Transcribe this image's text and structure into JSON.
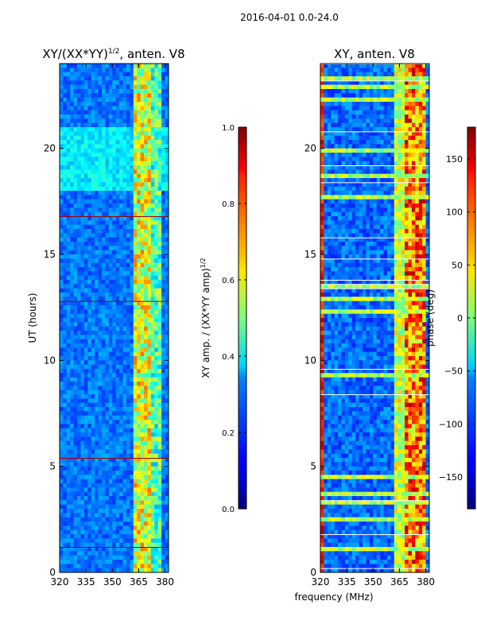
{
  "figure": {
    "suptitle": "2016-04-01 0.0-24.0",
    "shared_ylabel": "UT (hours)",
    "shared_xlabel": "frequency (MHz)"
  },
  "chart_data": [
    {
      "type": "heatmap",
      "title_main": "XY/(XX*YY)",
      "title_sup": "1/2",
      "title_tail": ", anten. V8",
      "xlabel": "frequency (MHz)",
      "ylabel": "UT (hours)",
      "xlim": [
        320,
        382
      ],
      "ylim": [
        0,
        24
      ],
      "xticks": [
        320,
        335,
        350,
        365,
        380
      ],
      "yticks": [
        0,
        5,
        10,
        15,
        20
      ],
      "colormap": "jet",
      "colorbar": {
        "label_main": "XY amp. / (XX*YY amp)",
        "label_sup": "1/2",
        "range": [
          0.0,
          1.0
        ],
        "ticks": [
          "0.0",
          "0.2",
          "0.4",
          "0.6",
          "0.8",
          "1.0"
        ],
        "tick_values": [
          0.0,
          0.2,
          0.4,
          0.6,
          0.8,
          1.0
        ]
      }
    },
    {
      "type": "heatmap",
      "title": "XY, anten. V8",
      "xlabel": "frequency (MHz)",
      "ylabel": "",
      "xlim": [
        320,
        382
      ],
      "ylim": [
        0,
        24
      ],
      "xticks": [
        320,
        335,
        350,
        365,
        380
      ],
      "yticks": [
        0,
        5,
        10,
        15,
        20
      ],
      "colormap": "jet",
      "colorbar": {
        "label": "phase (deg)",
        "range": [
          -180,
          180
        ],
        "ticks": [
          "−150",
          "−100",
          "−50",
          "0",
          "50",
          "100",
          "150"
        ],
        "tick_values": [
          -150,
          -100,
          -50,
          0,
          50,
          100,
          150
        ]
      }
    }
  ]
}
